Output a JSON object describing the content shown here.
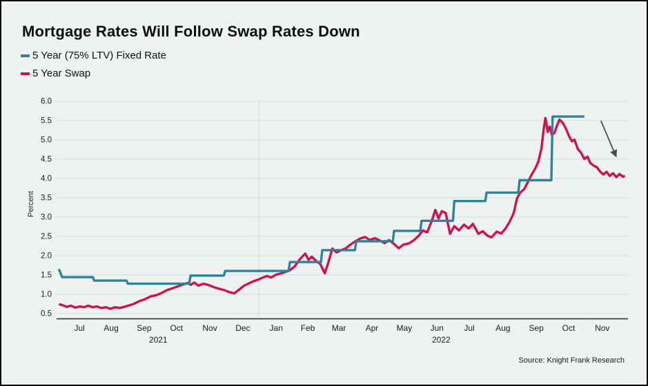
{
  "title": "Mortgage Rates Will Follow Swap Rates Down",
  "source": "Source: Knight Frank Research",
  "colors": {
    "background": "#eef2f0",
    "grid": "#d9dddb",
    "axis_line": "#3f3f3f",
    "text": "#1a1a1a",
    "arrow": "#4f4f4f",
    "fixed_rate_teal": "#31809c",
    "swap_crimson": "#d0124a"
  },
  "chart_data": {
    "type": "line",
    "title": "Mortgage Rates Will Follow Swap Rates Down",
    "xlabel": "",
    "ylabel": "Percent",
    "x_axis": {
      "unit": "months since 2021-07-01",
      "range": [
        -0.2,
        17.3
      ],
      "month_ticks": [
        {
          "label": "Jul",
          "t": 0.51
        },
        {
          "label": "Aug",
          "t": 1.48
        },
        {
          "label": "Sep",
          "t": 2.49
        },
        {
          "label": "Oct",
          "t": 3.48
        },
        {
          "label": "Nov",
          "t": 4.5
        },
        {
          "label": "Dec",
          "t": 5.51
        },
        {
          "label": "Jan",
          "t": 6.53
        },
        {
          "label": "Feb",
          "t": 7.5
        },
        {
          "label": "Mar",
          "t": 8.45
        },
        {
          "label": "Apr",
          "t": 9.46
        },
        {
          "label": "May",
          "t": 10.45
        },
        {
          "label": "Jun",
          "t": 11.45
        },
        {
          "label": "Jul",
          "t": 12.44
        },
        {
          "label": "Aug",
          "t": 13.47
        },
        {
          "label": "Sep",
          "t": 14.49
        },
        {
          "label": "Oct",
          "t": 15.48
        },
        {
          "label": "Nov",
          "t": 16.51
        }
      ],
      "year_labels": [
        {
          "label": "2021",
          "t": 2.92
        },
        {
          "label": "2022",
          "t": 11.58
        }
      ],
      "year_divider_t": 6.0
    },
    "y_axis": {
      "min": 0.5,
      "max": 6.0,
      "step": 0.5,
      "grid": true,
      "ticks": [
        6.0,
        5.5,
        5.0,
        4.5,
        4.0,
        3.5,
        3.0,
        2.5,
        2.0,
        1.5,
        1.0,
        0.5
      ]
    },
    "legend_position": "top-left",
    "series": [
      {
        "name": "5 Year Swap",
        "color": "#d0124a",
        "style": "line",
        "points": [
          [
            -0.12,
            0.74
          ],
          [
            0.0,
            0.71
          ],
          [
            0.12,
            0.67
          ],
          [
            0.25,
            0.7
          ],
          [
            0.38,
            0.65
          ],
          [
            0.52,
            0.68
          ],
          [
            0.65,
            0.66
          ],
          [
            0.78,
            0.7
          ],
          [
            0.92,
            0.66
          ],
          [
            1.05,
            0.68
          ],
          [
            1.18,
            0.64
          ],
          [
            1.32,
            0.66
          ],
          [
            1.45,
            0.62
          ],
          [
            1.6,
            0.66
          ],
          [
            1.75,
            0.64
          ],
          [
            1.88,
            0.67
          ],
          [
            2.0,
            0.7
          ],
          [
            2.18,
            0.75
          ],
          [
            2.35,
            0.82
          ],
          [
            2.52,
            0.87
          ],
          [
            2.68,
            0.94
          ],
          [
            2.85,
            0.97
          ],
          [
            3.0,
            1.02
          ],
          [
            3.18,
            1.1
          ],
          [
            3.35,
            1.15
          ],
          [
            3.52,
            1.2
          ],
          [
            3.68,
            1.25
          ],
          [
            3.82,
            1.29
          ],
          [
            3.92,
            1.24
          ],
          [
            4.02,
            1.3
          ],
          [
            4.15,
            1.22
          ],
          [
            4.3,
            1.27
          ],
          [
            4.45,
            1.24
          ],
          [
            4.62,
            1.18
          ],
          [
            4.78,
            1.14
          ],
          [
            4.95,
            1.1
          ],
          [
            5.1,
            1.05
          ],
          [
            5.25,
            1.02
          ],
          [
            5.4,
            1.12
          ],
          [
            5.55,
            1.22
          ],
          [
            5.7,
            1.28
          ],
          [
            5.85,
            1.34
          ],
          [
            6.0,
            1.38
          ],
          [
            6.12,
            1.43
          ],
          [
            6.25,
            1.47
          ],
          [
            6.38,
            1.43
          ],
          [
            6.52,
            1.5
          ],
          [
            6.65,
            1.53
          ],
          [
            6.8,
            1.57
          ],
          [
            6.95,
            1.62
          ],
          [
            7.1,
            1.72
          ],
          [
            7.25,
            1.9
          ],
          [
            7.42,
            2.05
          ],
          [
            7.52,
            1.89
          ],
          [
            7.62,
            1.97
          ],
          [
            7.75,
            1.86
          ],
          [
            7.88,
            1.78
          ],
          [
            8.02,
            1.54
          ],
          [
            8.12,
            1.8
          ],
          [
            8.25,
            2.18
          ],
          [
            8.38,
            2.08
          ],
          [
            8.52,
            2.14
          ],
          [
            8.65,
            2.18
          ],
          [
            8.8,
            2.28
          ],
          [
            8.95,
            2.37
          ],
          [
            9.1,
            2.44
          ],
          [
            9.25,
            2.48
          ],
          [
            9.4,
            2.4
          ],
          [
            9.55,
            2.45
          ],
          [
            9.7,
            2.39
          ],
          [
            9.85,
            2.32
          ],
          [
            9.98,
            2.4
          ],
          [
            10.12,
            2.31
          ],
          [
            10.28,
            2.19
          ],
          [
            10.42,
            2.28
          ],
          [
            10.58,
            2.31
          ],
          [
            10.72,
            2.38
          ],
          [
            10.88,
            2.5
          ],
          [
            11.02,
            2.65
          ],
          [
            11.15,
            2.6
          ],
          [
            11.3,
            2.92
          ],
          [
            11.4,
            3.18
          ],
          [
            11.5,
            2.96
          ],
          [
            11.6,
            3.15
          ],
          [
            11.72,
            3.1
          ],
          [
            11.85,
            2.56
          ],
          [
            11.98,
            2.76
          ],
          [
            12.12,
            2.65
          ],
          [
            12.28,
            2.8
          ],
          [
            12.42,
            2.7
          ],
          [
            12.55,
            2.82
          ],
          [
            12.72,
            2.56
          ],
          [
            12.85,
            2.63
          ],
          [
            13.0,
            2.51
          ],
          [
            13.12,
            2.47
          ],
          [
            13.28,
            2.62
          ],
          [
            13.42,
            2.57
          ],
          [
            13.55,
            2.7
          ],
          [
            13.68,
            2.88
          ],
          [
            13.8,
            3.1
          ],
          [
            13.9,
            3.48
          ],
          [
            14.0,
            3.63
          ],
          [
            14.12,
            3.72
          ],
          [
            14.22,
            3.88
          ],
          [
            14.35,
            4.1
          ],
          [
            14.45,
            4.24
          ],
          [
            14.55,
            4.42
          ],
          [
            14.65,
            4.78
          ],
          [
            14.72,
            5.3
          ],
          [
            14.77,
            5.56
          ],
          [
            14.84,
            5.2
          ],
          [
            14.9,
            5.34
          ],
          [
            14.97,
            5.12
          ],
          [
            15.05,
            5.18
          ],
          [
            15.13,
            5.38
          ],
          [
            15.2,
            5.52
          ],
          [
            15.3,
            5.44
          ],
          [
            15.4,
            5.28
          ],
          [
            15.5,
            5.08
          ],
          [
            15.58,
            4.96
          ],
          [
            15.66,
            5.0
          ],
          [
            15.76,
            4.76
          ],
          [
            15.86,
            4.66
          ],
          [
            15.96,
            4.5
          ],
          [
            16.06,
            4.56
          ],
          [
            16.14,
            4.4
          ],
          [
            16.24,
            4.33
          ],
          [
            16.34,
            4.29
          ],
          [
            16.44,
            4.18
          ],
          [
            16.54,
            4.1
          ],
          [
            16.64,
            4.17
          ],
          [
            16.74,
            4.06
          ],
          [
            16.84,
            4.13
          ],
          [
            16.94,
            4.03
          ],
          [
            17.04,
            4.11
          ],
          [
            17.14,
            4.04
          ],
          [
            17.2,
            4.07
          ]
        ]
      },
      {
        "name": "5 Year (75% LTV) Fixed Rate",
        "color": "#31809c",
        "style": "step",
        "points": [
          [
            -0.12,
            1.65
          ],
          [
            -0.02,
            1.44
          ],
          [
            0.92,
            1.44
          ],
          [
            0.96,
            1.35
          ],
          [
            1.95,
            1.35
          ],
          [
            1.99,
            1.27
          ],
          [
            3.87,
            1.27
          ],
          [
            3.91,
            1.48
          ],
          [
            4.93,
            1.48
          ],
          [
            4.97,
            1.6
          ],
          [
            6.91,
            1.6
          ],
          [
            6.95,
            1.83
          ],
          [
            7.9,
            1.83
          ],
          [
            7.94,
            2.14
          ],
          [
            8.94,
            2.14
          ],
          [
            8.98,
            2.37
          ],
          [
            10.1,
            2.37
          ],
          [
            10.14,
            2.64
          ],
          [
            10.94,
            2.64
          ],
          [
            10.98,
            2.9
          ],
          [
            11.94,
            2.9
          ],
          [
            11.98,
            3.41
          ],
          [
            12.93,
            3.41
          ],
          [
            12.97,
            3.63
          ],
          [
            13.94,
            3.63
          ],
          [
            13.98,
            3.95
          ],
          [
            14.95,
            3.95
          ],
          [
            14.99,
            5.6
          ],
          [
            15.96,
            5.6
          ]
        ]
      }
    ],
    "annotations": [
      {
        "type": "arrow",
        "from": [
          16.47,
          5.49
        ],
        "to": [
          16.93,
          4.57
        ],
        "meaning": "rates heading down"
      }
    ]
  },
  "legend": [
    {
      "label": "5 Year (75% LTV) Fixed Rate"
    },
    {
      "label": "5 Year Swap"
    }
  ]
}
